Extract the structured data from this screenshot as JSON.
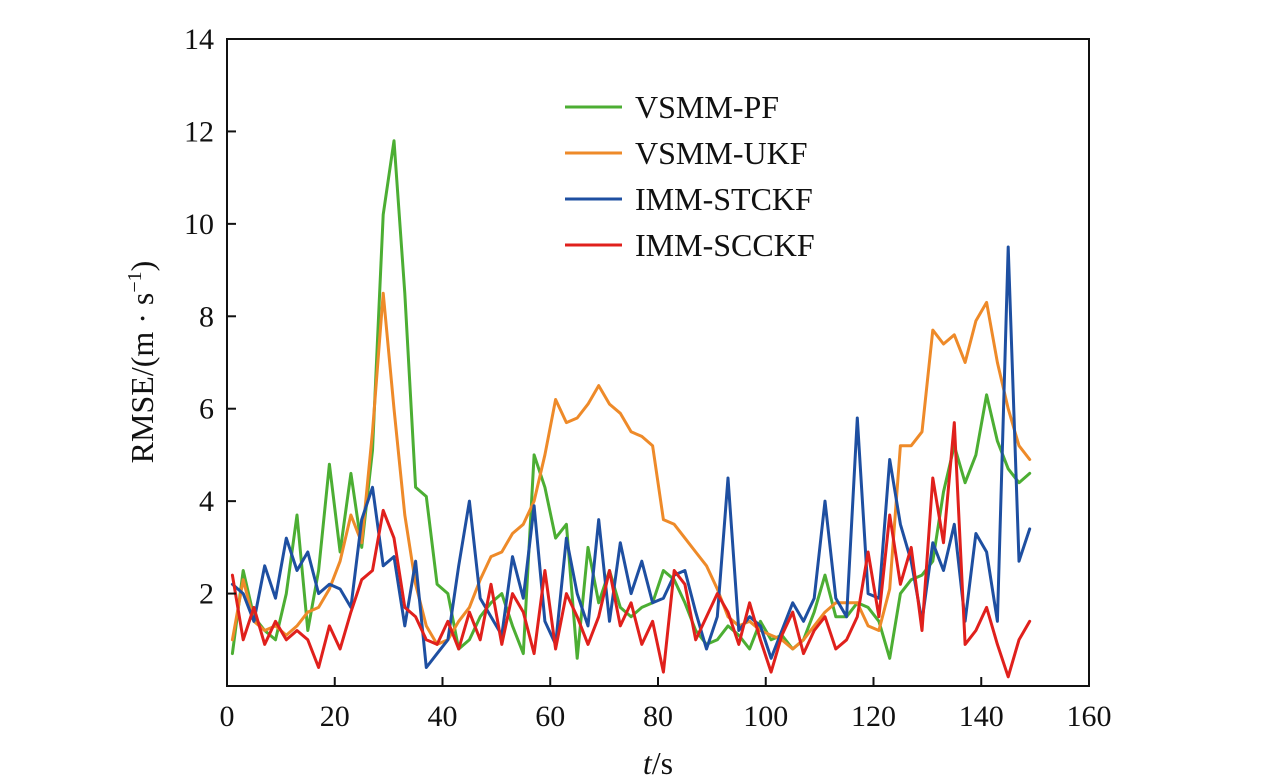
{
  "chart_data": {
    "type": "line",
    "title": "",
    "xlabel_italic": "t",
    "xlabel_rest": "/s",
    "ylabel_main": "RMSE/(m · s",
    "ylabel_sup": "−1",
    "ylabel_close": ")",
    "xlim": [
      0,
      160
    ],
    "ylim": [
      0,
      14
    ],
    "xticks": [
      0,
      20,
      40,
      60,
      80,
      100,
      120,
      140,
      160
    ],
    "yticks": [
      2,
      4,
      6,
      8,
      10,
      12,
      14
    ],
    "grid": false,
    "legend_position": "top-center",
    "x": [
      1,
      3,
      5,
      7,
      9,
      11,
      13,
      15,
      17,
      19,
      21,
      23,
      25,
      27,
      29,
      31,
      33,
      35,
      37,
      39,
      41,
      43,
      45,
      47,
      49,
      51,
      53,
      55,
      57,
      59,
      61,
      63,
      65,
      67,
      69,
      71,
      73,
      75,
      77,
      79,
      81,
      83,
      85,
      87,
      89,
      91,
      93,
      95,
      97,
      99,
      101,
      103,
      105,
      107,
      109,
      111,
      113,
      115,
      117,
      119,
      121,
      123,
      125,
      127,
      129,
      131,
      133,
      135,
      137,
      139,
      141,
      143,
      145,
      147,
      149
    ],
    "series": [
      {
        "name": "VSMM-PF",
        "color": "#4cae33",
        "values": [
          0.7,
          2.5,
          1.5,
          1.2,
          1.0,
          2.0,
          3.7,
          1.2,
          2.5,
          4.8,
          2.9,
          4.6,
          3.0,
          5.1,
          10.2,
          11.8,
          8.5,
          4.3,
          4.1,
          2.2,
          2.0,
          0.8,
          1.0,
          1.5,
          1.8,
          2.0,
          1.3,
          0.7,
          5.0,
          4.3,
          3.2,
          3.5,
          0.6,
          3.0,
          1.8,
          2.5,
          1.7,
          1.5,
          1.7,
          1.8,
          2.5,
          2.3,
          1.8,
          1.2,
          0.9,
          1.0,
          1.3,
          1.1,
          0.8,
          1.4,
          1.0,
          1.1,
          0.8,
          1.0,
          1.6,
          2.4,
          1.5,
          1.5,
          1.8,
          1.7,
          1.4,
          0.6,
          2.0,
          2.3,
          2.4,
          2.7,
          4.2,
          5.2,
          4.4,
          5.0,
          6.3,
          5.3,
          4.7,
          4.4,
          4.6
        ]
      },
      {
        "name": "VSMM-UKF",
        "color": "#ee8a29",
        "values": [
          1.0,
          2.3,
          1.4,
          1.2,
          1.3,
          1.1,
          1.3,
          1.6,
          1.7,
          2.1,
          2.7,
          3.7,
          3.1,
          5.5,
          8.5,
          6.0,
          3.7,
          2.2,
          1.3,
          0.9,
          1.0,
          1.4,
          1.7,
          2.3,
          2.8,
          2.9,
          3.3,
          3.5,
          4.0,
          5.0,
          6.2,
          5.7,
          5.8,
          6.1,
          6.5,
          6.1,
          5.9,
          5.5,
          5.4,
          5.2,
          3.6,
          3.5,
          3.2,
          2.9,
          2.6,
          2.1,
          1.5,
          1.3,
          1.4,
          1.2,
          1.1,
          1.0,
          0.8,
          1.0,
          1.3,
          1.6,
          1.8,
          1.8,
          1.8,
          1.3,
          1.2,
          2.1,
          5.2,
          5.2,
          5.5,
          7.7,
          7.4,
          7.6,
          7.0,
          7.9,
          8.3,
          7.0,
          6.0,
          5.2,
          4.9
        ]
      },
      {
        "name": "IMM-STCKF",
        "color": "#1e4fa1",
        "values": [
          2.2,
          2.0,
          1.4,
          2.6,
          1.9,
          3.2,
          2.5,
          2.9,
          2.0,
          2.2,
          2.1,
          1.7,
          3.6,
          4.3,
          2.6,
          2.8,
          1.3,
          2.7,
          0.4,
          0.7,
          1.0,
          2.6,
          4.0,
          1.9,
          1.5,
          1.1,
          2.8,
          1.9,
          3.9,
          1.4,
          0.9,
          3.2,
          2.0,
          1.3,
          3.6,
          1.4,
          3.1,
          2.0,
          2.7,
          1.8,
          1.9,
          2.4,
          2.5,
          1.6,
          0.8,
          1.5,
          4.5,
          1.2,
          1.5,
          1.3,
          0.6,
          1.2,
          1.8,
          1.4,
          1.9,
          4.0,
          1.9,
          1.5,
          5.8,
          2.0,
          1.9,
          4.9,
          3.5,
          2.7,
          1.4,
          3.1,
          2.5,
          3.5,
          1.4,
          3.3,
          2.9,
          1.4,
          9.5,
          2.7,
          3.4
        ]
      },
      {
        "name": "IMM-SCCKF",
        "color": "#e0201c",
        "values": [
          2.4,
          1.0,
          1.7,
          0.9,
          1.4,
          1.0,
          1.2,
          1.0,
          0.4,
          1.3,
          0.8,
          1.6,
          2.3,
          2.5,
          3.8,
          3.2,
          1.7,
          1.5,
          1.0,
          0.9,
          1.4,
          0.8,
          1.6,
          1.0,
          2.2,
          0.9,
          2.0,
          1.6,
          0.7,
          2.5,
          0.8,
          2.0,
          1.5,
          0.9,
          1.5,
          2.5,
          1.3,
          1.8,
          0.9,
          1.4,
          0.3,
          2.5,
          2.2,
          1.0,
          1.5,
          2.0,
          1.6,
          0.9,
          1.8,
          1.0,
          0.3,
          1.1,
          1.6,
          0.7,
          1.2,
          1.5,
          0.8,
          1.0,
          1.5,
          2.9,
          1.5,
          3.7,
          2.2,
          3.0,
          1.2,
          4.5,
          3.1,
          5.7,
          0.9,
          1.2,
          1.7,
          0.9,
          0.2,
          1.0,
          1.4
        ]
      }
    ]
  }
}
